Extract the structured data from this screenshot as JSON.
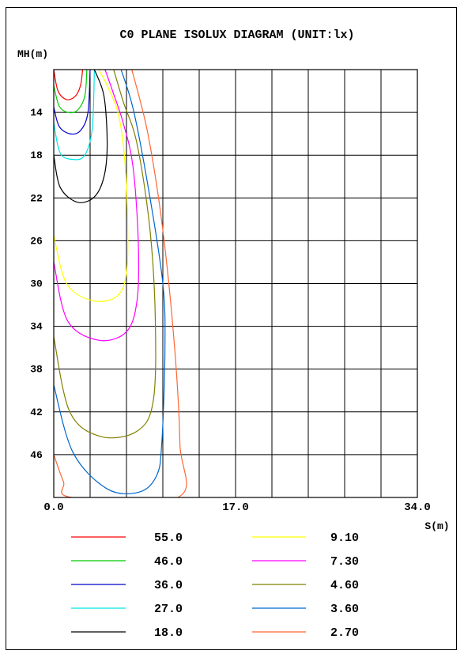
{
  "chart_data": {
    "type": "line",
    "title": "C0 PLANE ISOLUX DIAGRAM (UNIT:lx)",
    "xlabel": "S(m)",
    "ylabel": "MH(m)",
    "xlim": [
      0,
      34
    ],
    "ylim": [
      10,
      50
    ],
    "y_inverted": true,
    "x_ticks": [
      "0.0",
      "17.0",
      "34.0"
    ],
    "x_tick_values": [
      0,
      17,
      34
    ],
    "y_ticks": [
      "14",
      "18",
      "22",
      "26",
      "30",
      "34",
      "38",
      "42",
      "46"
    ],
    "y_tick_values": [
      14,
      18,
      22,
      26,
      30,
      34,
      38,
      42,
      46
    ],
    "grid": true,
    "legend_placement": "bottom",
    "series": [
      {
        "name": "55.0",
        "color": "#ff0000",
        "x": [
          0,
          0.4,
          1.2,
          2.0,
          2.5,
          2.7
        ],
        "y": [
          10.0,
          12.0,
          12.8,
          12.5,
          11.5,
          10.0
        ]
      },
      {
        "name": "46.0",
        "color": "#00cc00",
        "x": [
          0,
          0.5,
          1.3,
          2.2,
          2.9,
          3.1
        ],
        "y": [
          11.5,
          13.4,
          14.0,
          13.8,
          12.5,
          10.0
        ]
      },
      {
        "name": "36.0",
        "color": "#0000cc",
        "x": [
          0,
          0.5,
          1.5,
          2.5,
          3.2,
          3.4
        ],
        "y": [
          13.5,
          15.3,
          16.0,
          15.7,
          14.0,
          10.0
        ]
      },
      {
        "name": "27.0",
        "color": "#00e5e5",
        "x": [
          0,
          0.6,
          1.8,
          2.9,
          3.6,
          3.8
        ],
        "y": [
          15.0,
          17.8,
          18.4,
          18.0,
          15.5,
          10.0
        ]
      },
      {
        "name": "18.0",
        "color": "#000000",
        "x": [
          0,
          0.6,
          2.2,
          3.8,
          4.7,
          5.0,
          4.7,
          3.8
        ],
        "y": [
          18.0,
          21.0,
          22.4,
          21.9,
          20.0,
          17.0,
          12.5,
          10.0
        ]
      },
      {
        "name": "9.10",
        "color": "#ffff00",
        "x": [
          0,
          1.2,
          3.6,
          5.9,
          6.8,
          6.9,
          6.6,
          6.0,
          5.0,
          4.2
        ],
        "y": [
          25.5,
          30.0,
          31.6,
          31.2,
          29.0,
          24.0,
          18.0,
          14.0,
          11.5,
          10.0
        ]
      },
      {
        "name": "7.30",
        "color": "#ff00ff",
        "x": [
          0,
          1.3,
          4.2,
          6.8,
          7.8,
          7.9,
          7.4,
          6.5,
          5.5,
          4.8
        ],
        "y": [
          28.0,
          33.5,
          35.3,
          34.5,
          31.5,
          26.0,
          19.0,
          15.0,
          12.0,
          10.0
        ]
      },
      {
        "name": "4.60",
        "color": "#808000",
        "x": [
          0,
          1.5,
          4.4,
          7.8,
          9.3,
          9.5,
          9.0,
          7.8,
          6.5,
          5.6
        ],
        "y": [
          35.0,
          42.0,
          44.3,
          43.8,
          41.0,
          33.5,
          25.0,
          17.0,
          13.0,
          10.0
        ]
      },
      {
        "name": "3.60",
        "color": "#0066cc",
        "x": [
          0,
          1.8,
          5.0,
          8.0,
          9.6,
          10.1,
          10.4,
          10.2,
          9.0,
          7.5,
          6.3
        ],
        "y": [
          39.5,
          45.8,
          49.2,
          49.5,
          48.0,
          45.0,
          36.0,
          30.0,
          22.0,
          14.0,
          10.0
        ]
      },
      {
        "name": "2.70",
        "color": "#ff6633",
        "x": [
          0,
          0.9,
          1.7,
          11.6,
          11.8,
          11.3,
          10.2,
          8.8,
          7.3
        ],
        "y": [
          46.0,
          48.5,
          50.0,
          50.0,
          45.0,
          36.0,
          25.0,
          16.0,
          10.0
        ]
      }
    ]
  },
  "legend": {
    "left": [
      {
        "label": "55.0",
        "color": "#ff0000"
      },
      {
        "label": "46.0",
        "color": "#00cc00"
      },
      {
        "label": "36.0",
        "color": "#0000cc"
      },
      {
        "label": "27.0",
        "color": "#00e5e5"
      },
      {
        "label": "18.0",
        "color": "#000000"
      }
    ],
    "right": [
      {
        "label": "9.10",
        "color": "#ffff00"
      },
      {
        "label": "7.30",
        "color": "#ff00ff"
      },
      {
        "label": "4.60",
        "color": "#808000"
      },
      {
        "label": "3.60",
        "color": "#0066cc"
      },
      {
        "label": "2.70",
        "color": "#ff6633"
      }
    ]
  }
}
